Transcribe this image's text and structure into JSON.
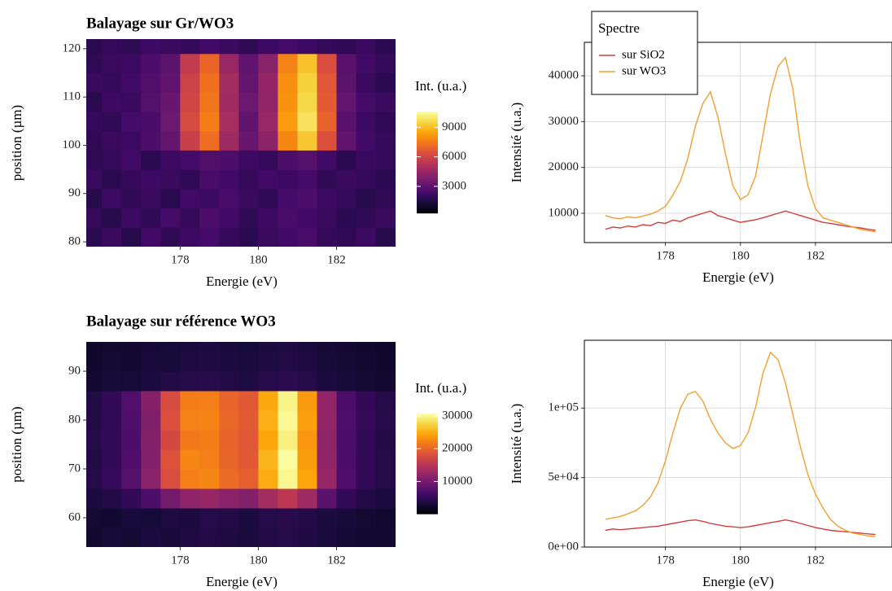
{
  "chart_data": [
    {
      "type": "heatmap",
      "title": "Balayage sur Gr/WO3",
      "xlabel": "Energie (eV)",
      "ylabel": "position (µm)",
      "colorbar_label": "Int. (u.a.)",
      "colormap": "inferno",
      "x": [
        175.75,
        176.25,
        176.75,
        177.25,
        177.75,
        178.25,
        178.75,
        179.25,
        179.75,
        180.25,
        180.75,
        181.25,
        181.75,
        182.25,
        182.75,
        183.25
      ],
      "y": [
        81,
        85,
        89,
        93,
        97,
        101,
        105,
        109,
        113,
        117,
        121
      ],
      "values": [
        [
          1800,
          2100,
          1700,
          2300,
          1900,
          2200,
          2400,
          2000,
          1800,
          2100,
          2300,
          2500,
          2000,
          1900,
          2200,
          1700
        ],
        [
          2000,
          1700,
          2200,
          1900,
          2400,
          2000,
          2600,
          2300,
          1900,
          2200,
          2500,
          2300,
          2100,
          1800,
          1900,
          2100
        ],
        [
          1700,
          2200,
          1900,
          2100,
          1800,
          2300,
          2200,
          2500,
          2100,
          1900,
          2400,
          2600,
          2200,
          2000,
          1700,
          1900
        ],
        [
          2100,
          1800,
          2000,
          2200,
          2100,
          1900,
          2500,
          2300,
          2000,
          2300,
          2200,
          2400,
          1900,
          2100,
          2000,
          1800
        ],
        [
          1900,
          2000,
          2300,
          1800,
          2200,
          2400,
          2700,
          2600,
          2200,
          2000,
          2600,
          2800,
          2300,
          1800,
          2100,
          2000
        ],
        [
          1900,
          2100,
          2200,
          2600,
          3200,
          5800,
          7200,
          4600,
          3300,
          4200,
          7800,
          9200,
          6400,
          3100,
          2300,
          2000
        ],
        [
          2000,
          1900,
          2400,
          2500,
          3400,
          6200,
          7600,
          4900,
          3100,
          4500,
          8300,
          9800,
          6900,
          2900,
          2200,
          1900
        ],
        [
          1800,
          2200,
          2100,
          2800,
          3300,
          6000,
          7400,
          4700,
          3400,
          4300,
          8100,
          9600,
          6700,
          3200,
          2400,
          2100
        ],
        [
          2100,
          2000,
          2300,
          2700,
          3100,
          5900,
          7300,
          4800,
          3200,
          4400,
          8000,
          9400,
          6600,
          3000,
          2100,
          1800
        ],
        [
          1900,
          2100,
          2200,
          2600,
          3000,
          5600,
          7000,
          4500,
          3100,
          4100,
          7700,
          9100,
          6300,
          2900,
          2300,
          2000
        ],
        [
          1800,
          2000,
          1900,
          2200,
          2100,
          2000,
          2300,
          2100,
          1900,
          2200,
          2400,
          2200,
          2000,
          1900,
          2100,
          1800
        ]
      ],
      "xlim": [
        175.6,
        183.55
      ],
      "ylim": [
        79,
        122
      ],
      "xticks": [
        178,
        180,
        182
      ],
      "yticks": [
        80,
        90,
        100,
        110,
        120
      ],
      "clim": [
        250,
        10580
      ],
      "cticks": [
        3000,
        6000,
        9000
      ]
    },
    {
      "type": "line",
      "xlabel": "Energie (eV)",
      "ylabel": "Intensité (u.a.)",
      "x": [
        176.4,
        176.6,
        176.8,
        177.0,
        177.2,
        177.4,
        177.6,
        177.8,
        178.0,
        178.2,
        178.4,
        178.6,
        178.8,
        179.0,
        179.2,
        179.4,
        179.6,
        179.8,
        180.0,
        180.2,
        180.4,
        180.6,
        180.8,
        181.0,
        181.2,
        181.4,
        181.6,
        181.8,
        182.0,
        182.2,
        182.4,
        182.6,
        182.8,
        183.0,
        183.2,
        183.4,
        183.6
      ],
      "series": [
        {
          "name": "sur SiO2",
          "color": "#d43d3d",
          "values": [
            6500,
            7000,
            6800,
            7200,
            7000,
            7500,
            7300,
            8000,
            7800,
            8500,
            8200,
            9000,
            9500,
            10000,
            10500,
            9500,
            9000,
            8500,
            8000,
            8300,
            8600,
            9000,
            9500,
            10000,
            10500,
            10000,
            9500,
            9000,
            8500,
            8000,
            7800,
            7500,
            7200,
            7000,
            6800,
            6500,
            6300
          ]
        },
        {
          "name": "sur WO3",
          "color": "#f0a030",
          "values": [
            9500,
            9000,
            8800,
            9200,
            9000,
            9400,
            9800,
            10500,
            11500,
            14000,
            17000,
            22000,
            29000,
            34000,
            36500,
            31000,
            23000,
            16000,
            13000,
            14000,
            18000,
            27000,
            36000,
            42000,
            44000,
            37000,
            25000,
            16000,
            11000,
            9000,
            8500,
            8000,
            7500,
            7000,
            6500,
            6200,
            6000
          ]
        }
      ],
      "xlim": [
        175.84,
        184.04
      ],
      "ylim": [
        3600,
        47300
      ],
      "xticks": [
        178,
        180,
        182
      ],
      "yticks": [
        10000,
        20000,
        30000,
        40000
      ],
      "grid": true,
      "legend": {
        "title": "Spectre",
        "position": "top-left"
      }
    },
    {
      "type": "heatmap",
      "title": "Balayage sur référence WO3",
      "xlabel": "Energie (eV)",
      "ylabel": "position (µm)",
      "colorbar_label": "Int. (u.a.)",
      "colormap": "inferno",
      "x": [
        175.75,
        176.25,
        176.75,
        177.25,
        177.75,
        178.25,
        178.75,
        179.25,
        179.75,
        180.25,
        180.75,
        181.25,
        181.75,
        182.25,
        182.75,
        183.25
      ],
      "y": [
        56,
        60,
        64,
        68,
        72,
        76,
        80,
        84,
        88,
        92,
        96
      ],
      "values": [
        [
          2500,
          3000,
          2800,
          3500,
          3200,
          3800,
          4000,
          3600,
          3400,
          3900,
          4200,
          3800,
          3300,
          2900,
          2700,
          2600
        ],
        [
          2800,
          2600,
          3200,
          3000,
          3600,
          3400,
          4200,
          3900,
          3500,
          4100,
          4400,
          4000,
          3400,
          3100,
          2800,
          2500
        ],
        [
          3500,
          4000,
          5000,
          7000,
          10000,
          12000,
          12500,
          11500,
          11000,
          13500,
          15500,
          13000,
          8000,
          5000,
          4000,
          3500
        ],
        [
          4200,
          5200,
          7500,
          11500,
          18000,
          22000,
          22500,
          20500,
          19500,
          25000,
          30000,
          24500,
          12500,
          7200,
          5100,
          4200
        ],
        [
          4000,
          5000,
          7200,
          11000,
          18500,
          22500,
          22000,
          20000,
          19000,
          25500,
          30500,
          24000,
          12000,
          7000,
          5000,
          4100
        ],
        [
          4100,
          5100,
          7000,
          11200,
          17500,
          21500,
          21800,
          19800,
          18800,
          24500,
          29500,
          23500,
          11800,
          6900,
          4900,
          4000
        ],
        [
          3900,
          4900,
          7100,
          10800,
          18200,
          22200,
          22300,
          20200,
          19200,
          25200,
          30200,
          24200,
          12200,
          7100,
          5200,
          4300
        ],
        [
          4000,
          5000,
          7300,
          11300,
          17800,
          21800,
          22000,
          19900,
          19000,
          24800,
          29800,
          23800,
          12100,
          7000,
          5000,
          4100
        ],
        [
          2600,
          3100,
          3000,
          3500,
          3900,
          4200,
          4300,
          4000,
          3700,
          4300,
          4600,
          4100,
          3500,
          3000,
          2800,
          2600
        ],
        [
          2400,
          2800,
          2700,
          3200,
          3100,
          3600,
          3800,
          3500,
          3300,
          3700,
          4000,
          3600,
          3100,
          2800,
          2600,
          2400
        ],
        [
          2200,
          2500,
          2600,
          2900,
          3000,
          3300,
          3500,
          3200,
          3000,
          3400,
          3600,
          3300,
          2900,
          2600,
          2400,
          2300
        ]
      ],
      "xlim": [
        175.6,
        183.55
      ],
      "ylim": [
        54,
        96
      ],
      "xticks": [
        178,
        180,
        182
      ],
      "yticks": [
        60,
        70,
        80,
        90
      ],
      "clim": [
        0,
        30700
      ],
      "cticks": [
        10000,
        20000,
        30000
      ]
    },
    {
      "type": "line",
      "xlabel": "Energie (eV)",
      "ylabel": "Intensité (u.a.)",
      "x": [
        176.4,
        176.6,
        176.8,
        177.0,
        177.2,
        177.4,
        177.6,
        177.8,
        178.0,
        178.2,
        178.4,
        178.6,
        178.8,
        179.0,
        179.2,
        179.4,
        179.6,
        179.8,
        180.0,
        180.2,
        180.4,
        180.6,
        180.8,
        181.0,
        181.2,
        181.4,
        181.6,
        181.8,
        182.0,
        182.2,
        182.4,
        182.6,
        182.8,
        183.0,
        183.2,
        183.4,
        183.6
      ],
      "series": [
        {
          "color": "#d43d3d",
          "values": [
            12000,
            13000,
            12500,
            13000,
            13500,
            14000,
            14500,
            15000,
            16000,
            17000,
            18000,
            19000,
            19500,
            18500,
            17000,
            16000,
            15000,
            14500,
            14000,
            14500,
            15500,
            16500,
            17500,
            18500,
            19500,
            18500,
            17000,
            15500,
            14000,
            13000,
            12000,
            11500,
            11000,
            10500,
            10000,
            9500,
            9000
          ]
        },
        {
          "color": "#f0a030",
          "values": [
            20000,
            21000,
            22000,
            24000,
            26000,
            30000,
            36000,
            46000,
            62000,
            82000,
            100000,
            110000,
            112000,
            105000,
            92000,
            82000,
            75000,
            71000,
            73000,
            82000,
            100000,
            125000,
            140000,
            135000,
            118000,
            95000,
            72000,
            52000,
            38000,
            28000,
            20000,
            15000,
            12000,
            10000,
            9000,
            8000,
            7500
          ]
        }
      ],
      "xlim": [
        175.84,
        184.04
      ],
      "ylim": [
        0,
        148800
      ],
      "xticks": [
        178,
        180,
        182
      ],
      "yticks": [
        {
          "value": 0,
          "label": "0e+00"
        },
        {
          "value": 50000,
          "label": "5e+04"
        },
        {
          "value": 100000,
          "label": "1e+05"
        }
      ],
      "grid": true
    }
  ]
}
